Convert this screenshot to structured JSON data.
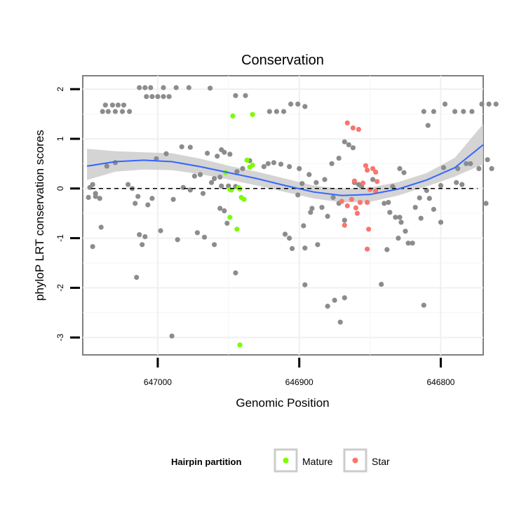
{
  "chart_data": {
    "type": "scatter",
    "title": "Conservation",
    "xlabel": "Genomic Position",
    "ylabel": "phyloP LRT conservation scores",
    "x_reversed": true,
    "xlim": [
      647053,
      646770
    ],
    "ylim": [
      -3.35,
      2.27
    ],
    "x_ticks": [
      647000,
      646900,
      646800
    ],
    "x_tick_labels": [
      "647000",
      "646900",
      "646800"
    ],
    "y_ticks": [
      -3,
      -2,
      -1,
      0,
      1,
      2
    ],
    "y_tick_labels": [
      "-3",
      "-2",
      "-1",
      "0",
      "1",
      "2"
    ],
    "reference_line": {
      "y": 0,
      "style": "dashed"
    },
    "legend": {
      "title": "Hairpin partition",
      "position": "bottom",
      "entries": [
        {
          "label": "Mature",
          "color": "#7CFC00"
        },
        {
          "label": "Star",
          "color": "#F8766D"
        }
      ]
    },
    "colors": {
      "other": "#8C8C8C",
      "Mature": "#7CFC00",
      "Star": "#F8766D",
      "smooth": "#3366FF",
      "ribbon": "#CCCCCC"
    },
    "smooth": {
      "x": [
        647050,
        647030,
        647010,
        646990,
        646970,
        646950,
        646930,
        646910,
        646890,
        646870,
        646850,
        646830,
        646810,
        646790,
        646770
      ],
      "y": [
        0.45,
        0.54,
        0.57,
        0.54,
        0.44,
        0.32,
        0.2,
        0.06,
        -0.07,
        -0.14,
        -0.12,
        -0.01,
        0.17,
        0.42,
        0.88
      ],
      "lower": [
        0.17,
        0.34,
        0.38,
        0.37,
        0.29,
        0.18,
        0.06,
        -0.07,
        -0.2,
        -0.28,
        -0.27,
        -0.14,
        0.04,
        0.24,
        0.49
      ],
      "upper": [
        0.8,
        0.75,
        0.73,
        0.71,
        0.6,
        0.46,
        0.34,
        0.2,
        0.06,
        -0.01,
        0.02,
        0.13,
        0.31,
        0.62,
        1.3
      ]
    },
    "series": [
      {
        "name": "Mature",
        "points": [
          [
            646947,
            1.46
          ],
          [
            646933,
            1.49
          ],
          [
            646937,
            0.57
          ],
          [
            646933,
            0.47
          ],
          [
            646935,
            0.43
          ],
          [
            646943,
            0.02
          ],
          [
            646942,
            -0.01
          ],
          [
            646948,
            -0.03
          ],
          [
            646949,
            -0.02
          ],
          [
            646941,
            -0.18
          ],
          [
            646939,
            -0.22
          ],
          [
            646949,
            -0.58
          ],
          [
            646944,
            -0.82
          ],
          [
            646942,
            -3.15
          ],
          [
            646952,
            0.32
          ]
        ]
      },
      {
        "name": "Star",
        "points": [
          [
            646866,
            1.32
          ],
          [
            646862,
            1.22
          ],
          [
            646858,
            1.19
          ],
          [
            646853,
            0.46
          ],
          [
            646852,
            0.37
          ],
          [
            646848,
            0.4
          ],
          [
            646846,
            0.33
          ],
          [
            646861,
            0.15
          ],
          [
            646855,
            0.11
          ],
          [
            646845,
            0.14
          ],
          [
            646850,
            -0.02
          ],
          [
            646846,
            -0.05
          ],
          [
            646870,
            -0.26
          ],
          [
            646863,
            -0.22
          ],
          [
            646857,
            -0.28
          ],
          [
            646852,
            -0.28
          ],
          [
            646866,
            -0.35
          ],
          [
            646860,
            -0.39
          ],
          [
            646859,
            -0.5
          ],
          [
            646868,
            -0.74
          ],
          [
            646851,
            -0.82
          ],
          [
            646852,
            -1.22
          ]
        ]
      },
      {
        "name": "Other",
        "points": [
          [
            647039,
            1.55
          ],
          [
            647035,
            1.55
          ],
          [
            647030,
            1.55
          ],
          [
            647025,
            1.55
          ],
          [
            647020,
            1.55
          ],
          [
            647037,
            1.68
          ],
          [
            647032,
            1.68
          ],
          [
            647028,
            1.68
          ],
          [
            647024,
            1.68
          ],
          [
            647013,
            2.03
          ],
          [
            647009,
            2.03
          ],
          [
            647005,
            2.03
          ],
          [
            646996,
            2.03
          ],
          [
            646987,
            2.03
          ],
          [
            646978,
            2.03
          ],
          [
            647008,
            1.85
          ],
          [
            647004,
            1.85
          ],
          [
            647000,
            1.85
          ],
          [
            646996,
            1.85
          ],
          [
            646992,
            1.85
          ],
          [
            646963,
            2.02
          ],
          [
            646945,
            1.87
          ],
          [
            646938,
            1.87
          ],
          [
            646916,
            1.55
          ],
          [
            646911,
            1.55
          ],
          [
            646906,
            1.7
          ],
          [
            646901,
            1.7
          ],
          [
            646896,
            1.65
          ],
          [
            646921,
            1.55
          ],
          [
            646797,
            1.7
          ],
          [
            646790,
            1.55
          ],
          [
            646784,
            1.55
          ],
          [
            646778,
            1.55
          ],
          [
            646771,
            1.7
          ],
          [
            646812,
            1.55
          ],
          [
            646805,
            1.55
          ],
          [
            646766,
            1.7
          ],
          [
            646761,
            1.7
          ],
          [
            646809,
            1.27
          ],
          [
            647036,
            0.45
          ],
          [
            647030,
            0.52
          ],
          [
            647048,
            0.02
          ],
          [
            647046,
            0.08
          ],
          [
            647044,
            -0.1
          ],
          [
            647041,
            -0.2
          ],
          [
            647046,
            -1.17
          ],
          [
            647040,
            -0.78
          ],
          [
            647049,
            -0.18
          ],
          [
            647044,
            -0.16
          ],
          [
            647021,
            0.08
          ],
          [
            647018,
            0.0
          ],
          [
            647016,
            -0.3
          ],
          [
            647014,
            -0.16
          ],
          [
            647013,
            -0.93
          ],
          [
            647011,
            -1.13
          ],
          [
            647009,
            -0.97
          ],
          [
            647007,
            -0.33
          ],
          [
            647004,
            -0.2
          ],
          [
            647001,
            0.6
          ],
          [
            646998,
            -0.85
          ],
          [
            646994,
            0.7
          ],
          [
            647015,
            -1.79
          ],
          [
            646990,
            -2.97
          ],
          [
            646983,
            0.84
          ],
          [
            646977,
            0.83
          ],
          [
            646982,
            0.02
          ],
          [
            646977,
            -0.03
          ],
          [
            646974,
            0.25
          ],
          [
            646970,
            0.28
          ],
          [
            646965,
            0.71
          ],
          [
            646958,
            0.65
          ],
          [
            646955,
            0.78
          ],
          [
            646949,
            0.69
          ],
          [
            646953,
            0.73
          ],
          [
            646960,
            0.2
          ],
          [
            646955,
            0.05
          ],
          [
            646950,
            0.05
          ],
          [
            646945,
            0.04
          ],
          [
            646972,
            -0.89
          ],
          [
            646967,
            -0.98
          ],
          [
            646960,
            -1.13
          ],
          [
            646956,
            -0.4
          ],
          [
            646953,
            -0.45
          ],
          [
            646951,
            -0.7
          ],
          [
            646945,
            -1.7
          ],
          [
            646968,
            -0.1
          ],
          [
            646962,
            0.12
          ],
          [
            646956,
            0.23
          ],
          [
            646944,
            0.34
          ],
          [
            646940,
            0.4
          ],
          [
            646925,
            0.44
          ],
          [
            646922,
            0.5
          ],
          [
            646918,
            0.52
          ],
          [
            646913,
            0.49
          ],
          [
            646907,
            0.44
          ],
          [
            646900,
            0.4
          ],
          [
            646898,
            0.1
          ],
          [
            646893,
            0.28
          ],
          [
            646888,
            0.12
          ],
          [
            646882,
            0.18
          ],
          [
            646877,
            0.5
          ],
          [
            646872,
            0.61
          ],
          [
            646868,
            0.94
          ],
          [
            646865,
            0.88
          ],
          [
            646862,
            0.82
          ],
          [
            646935,
            0.56
          ],
          [
            646910,
            -0.92
          ],
          [
            646907,
            -1.0
          ],
          [
            646905,
            -1.21
          ],
          [
            646901,
            -0.13
          ],
          [
            646896,
            -1.2
          ],
          [
            646892,
            -0.48
          ],
          [
            646897,
            -0.75
          ],
          [
            646891,
            -0.4
          ],
          [
            646884,
            -0.38
          ],
          [
            646880,
            -0.56
          ],
          [
            646876,
            -0.18
          ],
          [
            646872,
            -0.3
          ],
          [
            646868,
            -0.64
          ],
          [
            646887,
            -1.13
          ],
          [
            646858,
            0.08
          ],
          [
            646861,
            0.12
          ],
          [
            646856,
            0.04
          ],
          [
            646848,
            0.18
          ],
          [
            646840,
            -0.3
          ],
          [
            646836,
            -0.48
          ],
          [
            646832,
            -0.58
          ],
          [
            646828,
            -0.68
          ],
          [
            646825,
            -0.86
          ],
          [
            646830,
            -1.0
          ],
          [
            646823,
            -1.1
          ],
          [
            646820,
            -1.1
          ],
          [
            646837,
            -0.28
          ],
          [
            646834,
            0.04
          ],
          [
            646829,
            0.4
          ],
          [
            646826,
            0.32
          ],
          [
            646818,
            -0.38
          ],
          [
            646815,
            -0.19
          ],
          [
            646810,
            -0.04
          ],
          [
            646808,
            -0.2
          ],
          [
            646805,
            -0.42
          ],
          [
            646800,
            -0.68
          ],
          [
            646838,
            -1.23
          ],
          [
            646842,
            -1.93
          ],
          [
            646829,
            -0.58
          ],
          [
            646814,
            -0.6
          ],
          [
            646800,
            0.06
          ],
          [
            646798,
            0.42
          ],
          [
            646788,
            0.4
          ],
          [
            646782,
            0.5
          ],
          [
            646779,
            0.5
          ],
          [
            646773,
            0.4
          ],
          [
            646767,
            0.58
          ],
          [
            646764,
            0.4
          ],
          [
            646768,
            -0.3
          ],
          [
            646785,
            0.08
          ],
          [
            646789,
            0.12
          ],
          [
            646880,
            -2.37
          ],
          [
            646875,
            -2.25
          ],
          [
            646868,
            -2.2
          ],
          [
            646871,
            -2.69
          ],
          [
            646896,
            -1.94
          ],
          [
            646812,
            -2.35
          ],
          [
            646989,
            -0.22
          ],
          [
            646986,
            -1.03
          ]
        ]
      }
    ]
  }
}
